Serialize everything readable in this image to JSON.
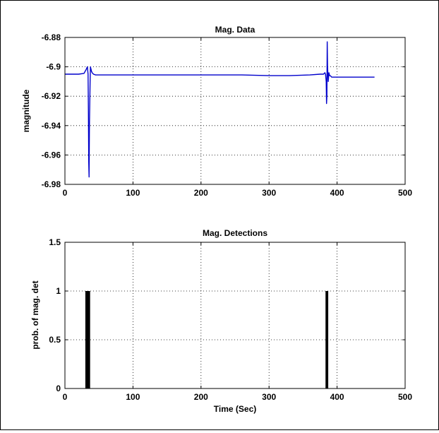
{
  "chart_data": [
    {
      "type": "line",
      "title": "Mag. Data",
      "xlabel": "",
      "ylabel": "magnitude",
      "xlim": [
        0,
        500
      ],
      "ylim": [
        -6.98,
        -6.88
      ],
      "xticks": [
        0,
        100,
        200,
        300,
        400,
        500
      ],
      "yticks": [
        -6.98,
        -6.96,
        -6.94,
        -6.92,
        -6.9,
        -6.88
      ],
      "xtick_labels": [
        "0",
        "100",
        "200",
        "300",
        "400",
        "500"
      ],
      "ytick_labels": [
        "-6.98",
        "-6.96",
        "-6.94",
        "-6.92",
        "-6.9",
        "-6.88"
      ],
      "grid": true,
      "line_color": "#0000cc",
      "series": [
        {
          "x": [
            0,
            10,
            20,
            28,
            31,
            32,
            33,
            34,
            34.5,
            35,
            35.5,
            36,
            37,
            37.5,
            38,
            39,
            40,
            42,
            45,
            50,
            60,
            80,
            100,
            130,
            160,
            200,
            230,
            260,
            300,
            330,
            360,
            375,
            380,
            382,
            383,
            384,
            384.5,
            385,
            385.5,
            386,
            387,
            388,
            389,
            390,
            392,
            395,
            400,
            420,
            440,
            455
          ],
          "y": [
            -6.905,
            -6.905,
            -6.905,
            -6.9045,
            -6.902,
            -6.901,
            -6.9,
            -6.905,
            -6.93,
            -6.965,
            -6.975,
            -6.94,
            -6.91,
            -6.9,
            -6.901,
            -6.903,
            -6.904,
            -6.905,
            -6.9055,
            -6.9055,
            -6.9055,
            -6.9055,
            -6.9055,
            -6.9055,
            -6.9055,
            -6.9055,
            -6.9055,
            -6.9055,
            -6.906,
            -6.906,
            -6.9055,
            -6.905,
            -6.905,
            -6.904,
            -6.905,
            -6.91,
            -6.925,
            -6.92,
            -6.883,
            -6.9,
            -6.91,
            -6.904,
            -6.906,
            -6.906,
            -6.907,
            -6.907,
            -6.907,
            -6.907,
            -6.907,
            -6.907
          ]
        }
      ]
    },
    {
      "type": "bar",
      "title": "Mag. Detections",
      "xlabel": "Time (Sec)",
      "ylabel": "prob. of mag. det",
      "xlim": [
        0,
        500
      ],
      "ylim": [
        0,
        1.5
      ],
      "xticks": [
        0,
        100,
        200,
        300,
        400,
        500
      ],
      "yticks": [
        0,
        0.5,
        1,
        1.5
      ],
      "xtick_labels": [
        "0",
        "100",
        "200",
        "300",
        "400",
        "500"
      ],
      "ytick_labels": [
        "0",
        "0.5",
        "1",
        "1.5"
      ],
      "grid": true,
      "bar_color": "#000000",
      "bars": [
        {
          "x_start": 30,
          "x_end": 37,
          "value": 1
        },
        {
          "x_start": 383,
          "x_end": 387,
          "value": 1
        }
      ]
    }
  ]
}
